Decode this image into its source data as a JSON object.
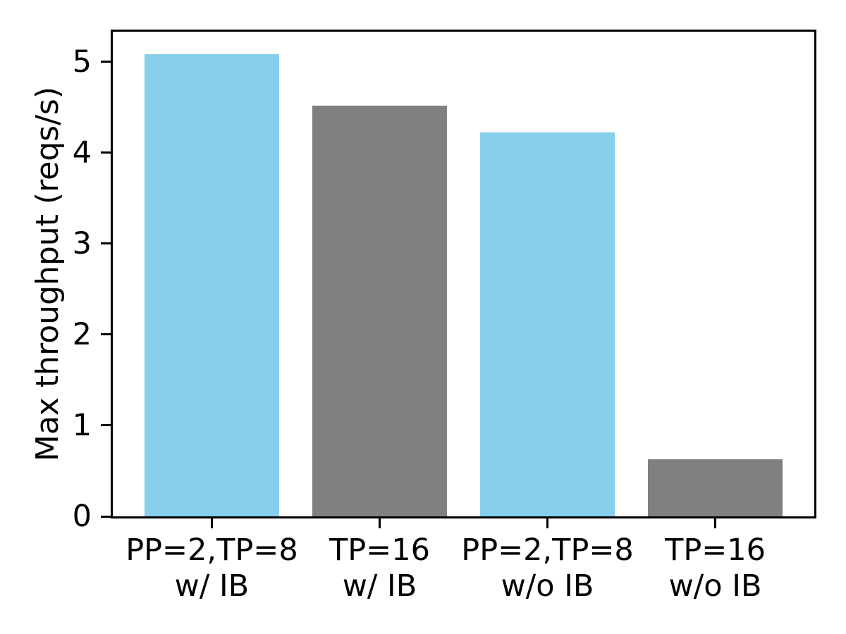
{
  "chart_data": {
    "type": "bar",
    "categories": [
      "PP=2,TP=8\nw/ IB",
      "TP=16\nw/ IB",
      "PP=2,TP=8\nw/o IB",
      "TP=16\nw/o IB"
    ],
    "values": [
      5.08,
      4.52,
      4.22,
      0.63
    ],
    "bar_colors": [
      "#87ceeb",
      "#808080",
      "#87ceeb",
      "#808080"
    ],
    "xlabel": "",
    "ylabel": "Max throughput (reqs/s)",
    "ylim": [
      0,
      5.33
    ],
    "yticks": [
      0,
      1,
      2,
      3,
      4,
      5
    ],
    "grid": false,
    "legend": false,
    "axis_color": "#000000",
    "background_color": "#ffffff"
  }
}
